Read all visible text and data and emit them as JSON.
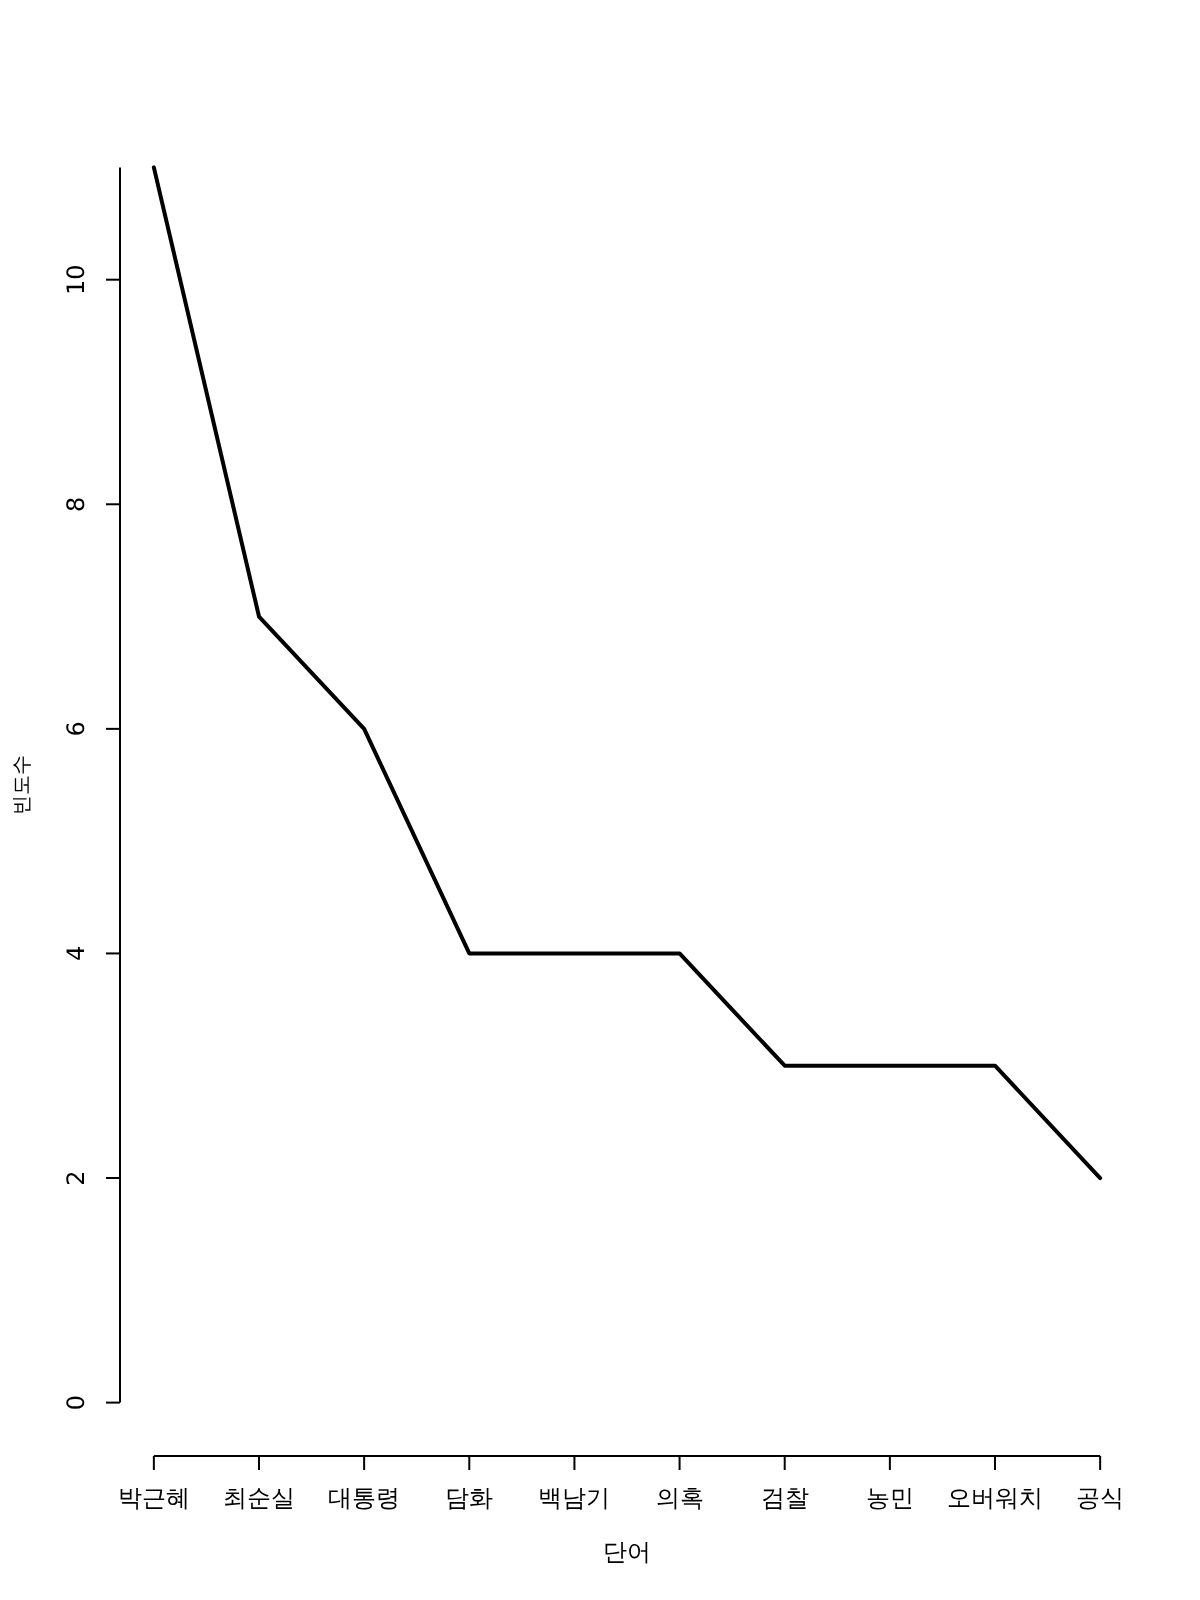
{
  "chart_data": {
    "type": "line",
    "xlabel": "단어",
    "ylabel": "빈도수",
    "categories": [
      "박근혜",
      "최순실",
      "대통령",
      "담화",
      "백남기",
      "의혹",
      "검찰",
      "농민",
      "오버워치",
      "공식"
    ],
    "series": [
      {
        "color": "#000000",
        "values": [
          11,
          7,
          6,
          4,
          4,
          4,
          3,
          3,
          3,
          2
        ]
      }
    ],
    "ylim": [
      0,
      11
    ],
    "yticks": [
      0,
      2,
      4,
      6,
      8,
      10
    ],
    "grid": false,
    "marker": "none",
    "line_style": "solid"
  }
}
